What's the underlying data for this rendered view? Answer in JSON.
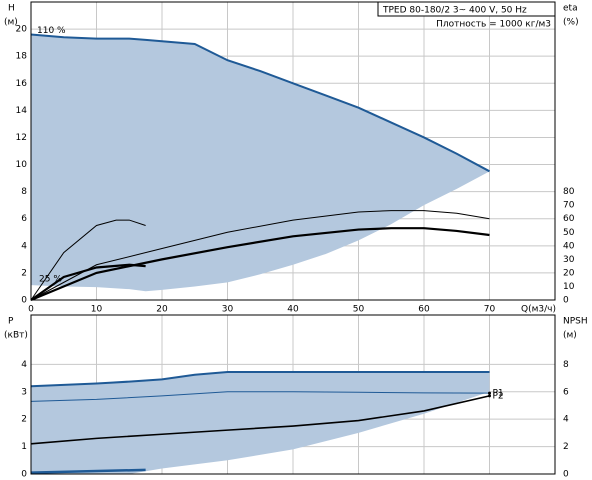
{
  "chart_data": [
    {
      "type": "line",
      "title": "TPED 80-180/2    3~ 400 V, 50 Hz",
      "subtitle": "Плотность = 1000 кг/м3",
      "y_label": "H",
      "y_unit": "(м)",
      "y2_label": "eta",
      "y2_unit": "(%)",
      "x_label": "Q(м3/ч)",
      "annotations": [
        "110 %",
        "25 %"
      ],
      "xlim": [
        0,
        80
      ],
      "ylim": [
        0,
        22
      ],
      "y2lim": [
        0,
        220
      ],
      "xticks": [
        0,
        10,
        20,
        30,
        40,
        50,
        60,
        70
      ],
      "yticks": [
        0,
        2,
        4,
        6,
        8,
        10,
        12,
        14,
        16,
        18,
        20
      ],
      "y2ticks": [
        0,
        10,
        20,
        30,
        40,
        50,
        60,
        70,
        80
      ],
      "grid": true,
      "area": {
        "color": "#b4c8de",
        "line_color": "#1f5a96",
        "x": [
          0,
          5,
          10,
          15,
          17.5,
          20,
          25,
          30,
          35,
          40,
          45,
          50,
          55,
          60,
          65,
          70
        ],
        "values": [
          19.6,
          19.4,
          19.3,
          19.3,
          19.2,
          19.1,
          18.9,
          17.7,
          16.9,
          16.0,
          15.1,
          14.2,
          13.1,
          12.0,
          10.8,
          9.5
        ],
        "lower": [
          1.1,
          1.0,
          0.95,
          0.8,
          0.65,
          0.75,
          1.0,
          1.3,
          1.9,
          2.6,
          3.4,
          4.4,
          5.6,
          7.0,
          8.2,
          9.5
        ]
      },
      "series": [
        {
          "color": "#000000",
          "width": 1,
          "axis": "y2",
          "x": [
            0,
            10,
            20,
            30,
            40,
            50,
            55,
            60,
            65,
            70
          ],
          "values": [
            0,
            26,
            38,
            50,
            59,
            65,
            66,
            66,
            64,
            60
          ]
        },
        {
          "color": "#000000",
          "width": 2.2,
          "axis": "y2",
          "x": [
            0,
            10,
            20,
            30,
            40,
            50,
            55,
            60,
            65,
            70
          ],
          "values": [
            0,
            20,
            30,
            39,
            47,
            52,
            53,
            53,
            51,
            48
          ]
        },
        {
          "color": "#000000",
          "width": 1,
          "axis": "y2",
          "x": [
            0,
            5,
            10,
            13,
            15,
            17.5
          ],
          "values": [
            0,
            35,
            55,
            59,
            59,
            55
          ]
        },
        {
          "color": "#000000",
          "width": 2.2,
          "axis": "y2",
          "x": [
            0,
            5,
            10,
            15,
            17.5
          ],
          "values": [
            0,
            17,
            24,
            26,
            25
          ]
        }
      ]
    },
    {
      "type": "line",
      "y_label": "P",
      "y_unit": "(кВт)",
      "y2_label": "NPSH",
      "y2_unit": "(м)",
      "xlim": [
        0,
        80
      ],
      "ylim": [
        0,
        5.8
      ],
      "y2lim": [
        0,
        11.6
      ],
      "yticks": [
        0,
        1,
        2,
        3,
        4
      ],
      "y2ticks": [
        0,
        2,
        4,
        6,
        8
      ],
      "grid": true,
      "area": {
        "color": "#b4c8de",
        "line_color": "#1f5a96",
        "x": [
          0,
          10,
          15,
          20,
          25,
          30,
          40,
          50,
          60,
          70
        ],
        "values": [
          3.2,
          3.3,
          3.37,
          3.45,
          3.62,
          3.72,
          3.72,
          3.72,
          3.72,
          3.72
        ],
        "lower": [
          0,
          0,
          0,
          0.2,
          0.35,
          0.5,
          0.9,
          1.5,
          2.2,
          3.0
        ]
      },
      "series": [
        {
          "name": "P1",
          "color": "#1f5a96",
          "width": 1,
          "x": [
            0,
            10,
            20,
            30,
            40,
            50,
            60,
            70
          ],
          "values": [
            2.65,
            2.72,
            2.85,
            3.0,
            3.0,
            2.98,
            2.96,
            2.95
          ]
        },
        {
          "name": "P2",
          "color": "#000000",
          "width": 1.6,
          "axis": "y2",
          "x": [
            0,
            10,
            20,
            30,
            40,
            50,
            60,
            70
          ],
          "values": [
            2.2,
            2.6,
            2.9,
            3.2,
            3.5,
            3.9,
            4.6,
            5.7
          ]
        },
        {
          "color": "#1f5a96",
          "width": 2.5,
          "x": [
            0,
            17.5
          ],
          "values": [
            0.05,
            0.15
          ]
        }
      ]
    }
  ]
}
